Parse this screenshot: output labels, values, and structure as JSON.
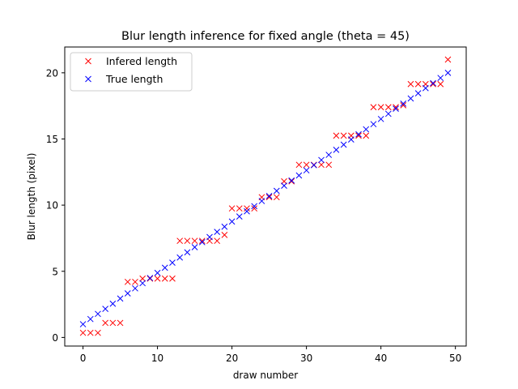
{
  "chart_data": {
    "type": "scatter",
    "title": "Blur length inference for fixed angle (theta = 45)",
    "xlabel": "draw number",
    "ylabel": "Blur length (pixel)",
    "xlim": [
      -2.45,
      51.45
    ],
    "ylim": [
      -0.65,
      21.95
    ],
    "xticks": [
      0,
      10,
      20,
      30,
      40,
      50
    ],
    "yticks": [
      0,
      5,
      10,
      15,
      20
    ],
    "legend_position": "upper-left",
    "marker": "x",
    "series": [
      {
        "name": "Infered length",
        "color": "#ff0000",
        "x": [
          0,
          1,
          2,
          3,
          4,
          5,
          6,
          7,
          8,
          9,
          10,
          11,
          12,
          13,
          14,
          15,
          16,
          17,
          18,
          19,
          20,
          21,
          22,
          23,
          24,
          25,
          26,
          27,
          28,
          29,
          30,
          31,
          32,
          33,
          34,
          35,
          36,
          37,
          38,
          39,
          40,
          41,
          42,
          43,
          44,
          45,
          46,
          47,
          48,
          49
        ],
        "y": [
          0.35,
          0.35,
          0.35,
          1.1,
          1.1,
          1.1,
          4.2,
          4.2,
          4.45,
          4.45,
          4.45,
          4.45,
          4.45,
          7.3,
          7.3,
          7.3,
          7.3,
          7.3,
          7.3,
          7.75,
          9.75,
          9.75,
          9.75,
          9.75,
          10.6,
          10.6,
          10.6,
          11.8,
          11.8,
          13.05,
          13.05,
          13.05,
          13.05,
          13.05,
          15.25,
          15.25,
          15.25,
          15.25,
          15.25,
          17.4,
          17.4,
          17.4,
          17.4,
          17.55,
          19.15,
          19.15,
          19.15,
          19.15,
          19.15,
          21.0
        ]
      },
      {
        "name": "True length",
        "color": "#0000ff",
        "x": [
          0,
          1,
          2,
          3,
          4,
          5,
          6,
          7,
          8,
          9,
          10,
          11,
          12,
          13,
          14,
          15,
          16,
          17,
          18,
          19,
          20,
          21,
          22,
          23,
          24,
          25,
          26,
          27,
          28,
          29,
          30,
          31,
          32,
          33,
          34,
          35,
          36,
          37,
          38,
          39,
          40,
          41,
          42,
          43,
          44,
          45,
          46,
          47,
          48,
          49
        ],
        "y": [
          1.0,
          1.39,
          1.78,
          2.16,
          2.55,
          2.94,
          3.33,
          3.71,
          4.1,
          4.49,
          4.88,
          5.27,
          5.65,
          6.04,
          6.43,
          6.82,
          7.2,
          7.59,
          7.98,
          8.37,
          8.76,
          9.14,
          9.53,
          9.92,
          10.31,
          10.69,
          11.08,
          11.47,
          11.86,
          12.24,
          12.63,
          13.02,
          13.41,
          13.8,
          14.18,
          14.57,
          14.96,
          15.35,
          15.73,
          16.12,
          16.51,
          16.9,
          17.29,
          17.67,
          18.06,
          18.45,
          18.84,
          19.22,
          19.61,
          20.0
        ]
      }
    ]
  }
}
